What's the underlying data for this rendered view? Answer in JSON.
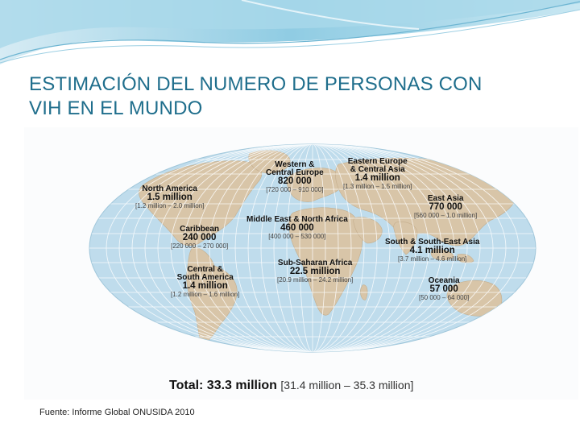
{
  "title": {
    "line1": "ESTIMACIÓN DEL NUMERO DE PERSONAS CON",
    "line2": "VIH EN EL MUNDO"
  },
  "regions": [
    {
      "name": "North America",
      "value": "1.5 million",
      "range": "[1.2 million – 2.0 million]"
    },
    {
      "name_line1": "Western &",
      "name_line2": "Central Europe",
      "value": "820 000",
      "range": "[720 000 – 910 000]"
    },
    {
      "name_line1": "Eastern Europe",
      "name_line2": "& Central Asia",
      "value": "1.4 million",
      "range": "[1.3 million – 1.5 million]"
    },
    {
      "name": "East Asia",
      "value": "770 000",
      "range": "[560 000 – 1.0 million]"
    },
    {
      "name": "Caribbean",
      "value": "240 000",
      "range": "[220 000 – 270 000]"
    },
    {
      "name": "Middle East & North Africa",
      "value": "460 000",
      "range": "[400 000 – 530 000]"
    },
    {
      "name": "South & South-East Asia",
      "value": "4.1 million",
      "range": "[3.7 million – 4.6 million]"
    },
    {
      "name": "Sub-Saharan Africa",
      "value": "22.5 million",
      "range": "[20.9 million – 24.2 million]"
    },
    {
      "name_line1": "Central &",
      "name_line2": "South America",
      "value": "1.4 million",
      "range": "[1.2 million – 1.6 million]"
    },
    {
      "name": "Oceania",
      "value": "57 000",
      "range": "[50 000 – 64 000]"
    }
  ],
  "total": {
    "label": "Total: 33.3 million",
    "range": "[31.4 million – 35.3 million]"
  },
  "source": "Fuente: Informe Global ONUSIDA 2010",
  "colors": {
    "title": "#1f6e8c",
    "ocean": "#bfdcec",
    "land": "#d8c5a8",
    "grid": "#ffffff"
  }
}
